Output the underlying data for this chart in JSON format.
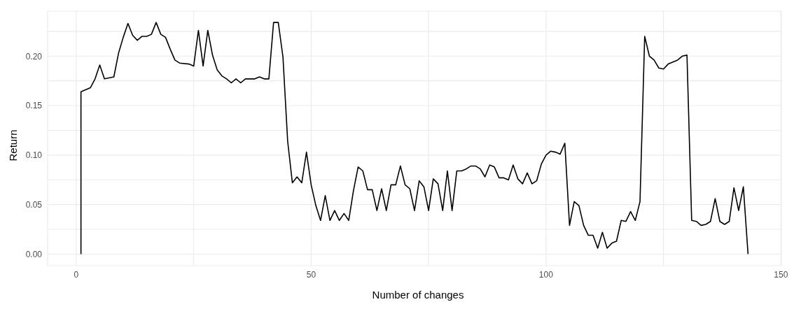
{
  "chart_data": {
    "type": "line",
    "xlabel": "Number of changes",
    "ylabel": "Return",
    "x": [
      1,
      1,
      3,
      4,
      5,
      6,
      8,
      9,
      10,
      11,
      12,
      13,
      14,
      15,
      16,
      17,
      18,
      19,
      20,
      21,
      22,
      24,
      25,
      26,
      27,
      28,
      29,
      30,
      31,
      32,
      33,
      34,
      35,
      36,
      38,
      39,
      40,
      41,
      42,
      43,
      44,
      45,
      46,
      47,
      48,
      49,
      50,
      51,
      52,
      53,
      54,
      55,
      56,
      57,
      58,
      59,
      60,
      61,
      62,
      63,
      64,
      65,
      66,
      67,
      68,
      69,
      70,
      71,
      72,
      73,
      74,
      75,
      76,
      77,
      78,
      79,
      80,
      81,
      82,
      83,
      84,
      85,
      86,
      87,
      88,
      89,
      90,
      91,
      92,
      93,
      94,
      95,
      96,
      97,
      98,
      99,
      100,
      101,
      102,
      103,
      104,
      105,
      106,
      107,
      108,
      109,
      110,
      111,
      112,
      113,
      114,
      115,
      116,
      117,
      118,
      119,
      120,
      121,
      122,
      123,
      124,
      125,
      126,
      127,
      128,
      129,
      130,
      131,
      132,
      133,
      134,
      135,
      136,
      137,
      138,
      139,
      140,
      141,
      142,
      143
    ],
    "series": [
      {
        "color": "#000000",
        "values": [
          0,
          0.164,
          0.168,
          0.177,
          0.191,
          0.177,
          0.179,
          0.203,
          0.219,
          0.233,
          0.221,
          0.216,
          0.22,
          0.22,
          0.222,
          0.234,
          0.222,
          0.219,
          0.207,
          0.196,
          0.193,
          0.192,
          0.19,
          0.226,
          0.19,
          0.226,
          0.201,
          0.186,
          0.18,
          0.177,
          0.173,
          0.177,
          0.173,
          0.177,
          0.177,
          0.179,
          0.177,
          0.177,
          0.234,
          0.234,
          0.199,
          0.114,
          0.072,
          0.078,
          0.072,
          0.103,
          0.07,
          0.049,
          0.034,
          0.059,
          0.034,
          0.044,
          0.034,
          0.041,
          0.034,
          0.064,
          0.088,
          0.084,
          0.065,
          0.065,
          0.044,
          0.066,
          0.044,
          0.07,
          0.07,
          0.089,
          0.07,
          0.066,
          0.044,
          0.074,
          0.068,
          0.044,
          0.076,
          0.071,
          0.044,
          0.084,
          0.044,
          0.084,
          0.084,
          0.086,
          0.089,
          0.089,
          0.086,
          0.078,
          0.09,
          0.088,
          0.077,
          0.077,
          0.075,
          0.09,
          0.076,
          0.071,
          0.082,
          0.071,
          0.074,
          0.091,
          0.1,
          0.104,
          0.103,
          0.101,
          0.112,
          0.029,
          0.053,
          0.049,
          0.029,
          0.019,
          0.019,
          0.006,
          0.022,
          0.006,
          0.011,
          0.013,
          0.034,
          0.033,
          0.043,
          0.034,
          0.053,
          0.22,
          0.2,
          0.196,
          0.188,
          0.187,
          0.192,
          0.194,
          0.196,
          0.2,
          0.201,
          0.034,
          0.033,
          0.029,
          0.03,
          0.033,
          0.056,
          0.033,
          0.03,
          0.033,
          0.067,
          0.044,
          0.068,
          0
        ]
      }
    ],
    "xlim": [
      -6.1,
      150.1
    ],
    "ylim": [
      -0.0117,
      0.2454
    ],
    "xticks": [
      0,
      {
        "value": 25,
        "label": null
      },
      50,
      {
        "value": 75,
        "label": null
      },
      100,
      {
        "value": 125,
        "label": null
      },
      150
    ],
    "yticks": [
      {
        "value": 0,
        "label": "0.00"
      },
      {
        "value": 0.025,
        "label": null
      },
      {
        "value": 0.05,
        "label": "0.05"
      },
      {
        "value": 0.075,
        "label": null
      },
      {
        "value": 0.1,
        "label": "0.10"
      },
      {
        "value": 0.125,
        "label": null
      },
      {
        "value": 0.15,
        "label": "0.15"
      },
      {
        "value": 0.175,
        "label": null
      },
      {
        "value": 0.2,
        "label": "0.20"
      },
      {
        "value": 0.225,
        "label": null
      }
    ],
    "grid": true
  }
}
